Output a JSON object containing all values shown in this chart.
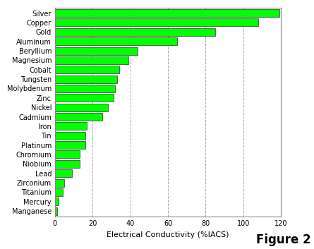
{
  "materials": [
    "Silver",
    "Copper",
    "Gold",
    "Aluminum",
    "Beryllium",
    "Magnesium",
    "Cobalt",
    "Tungsten",
    "Molybdenum",
    "Zinc",
    "Nickel",
    "Cadmium",
    "Iron",
    "Tin",
    "Platinum",
    "Chromium",
    "Niobium",
    "Lead",
    "Zirconium",
    "Titanium",
    "Mercury",
    "Manganese"
  ],
  "values": [
    119,
    108,
    85,
    65,
    44,
    39,
    34,
    33,
    32,
    31,
    28,
    25,
    17,
    16,
    16,
    13,
    13,
    9,
    5,
    4,
    2,
    1
  ],
  "bar_color": "#00FF00",
  "bar_edgecolor": "#333333",
  "background_color": "#FFFFFF",
  "plot_bg_color": "#FFFFFF",
  "xlabel": "Electrical Conductivity (%IACS)",
  "figure_label": "Figure 2",
  "xlim": [
    0,
    120
  ],
  "xticks": [
    0,
    20,
    40,
    60,
    80,
    100,
    120
  ],
  "grid_color": "#AAAAAA",
  "grid_linestyle": "--",
  "xlabel_fontsize": 8,
  "tick_fontsize": 7,
  "figure_label_fontsize": 12,
  "bar_height": 0.82
}
